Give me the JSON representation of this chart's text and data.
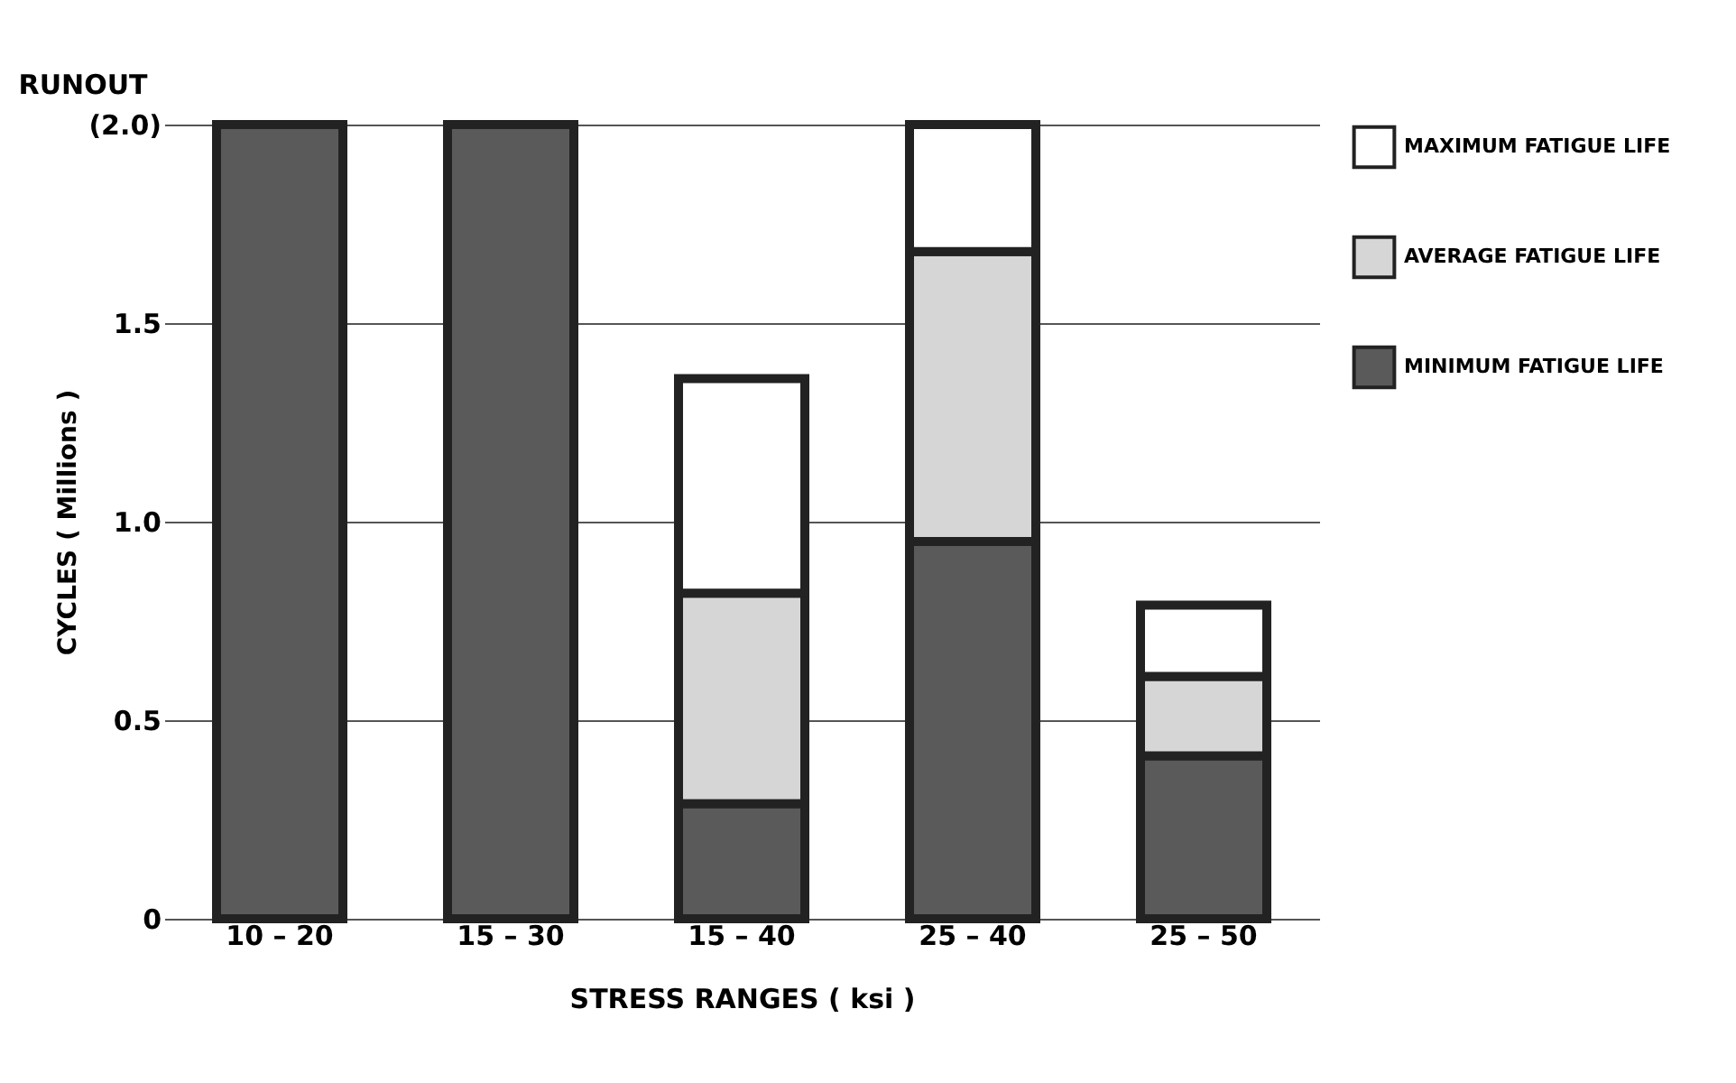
{
  "chart_data": {
    "type": "bar",
    "stacked": true,
    "xlabel": "STRESS RANGES ( ksi )",
    "ylabel": "CYCLES ( Millions )",
    "categories": [
      "10 – 20",
      "15 – 30",
      "15 – 40",
      "25 – 40",
      "25 – 50"
    ],
    "series": [
      {
        "name": "MINIMUM FATIGUE LIFE",
        "color": "#5a5a5a",
        "values": [
          2.0,
          2.0,
          0.29,
          0.95,
          0.41
        ]
      },
      {
        "name": "AVERAGE FATIGUE LIFE",
        "color": "#d6d6d6",
        "values": [
          null,
          null,
          0.53,
          0.73,
          0.2
        ]
      },
      {
        "name": "MAXIMUM FATIGUE LIFE",
        "color": "#ffffff",
        "values": [
          null,
          null,
          0.54,
          0.32,
          0.18
        ]
      }
    ],
    "ylim": [
      0,
      2.0
    ],
    "yticks": [
      0,
      0.5,
      {
        "value": 1,
        "label": "1.0"
      },
      1.5,
      {
        "value": 2.0,
        "label": "(2.0)"
      }
    ],
    "grid": "y",
    "legend": "right",
    "annotations": [
      "RUNOUT"
    ]
  }
}
